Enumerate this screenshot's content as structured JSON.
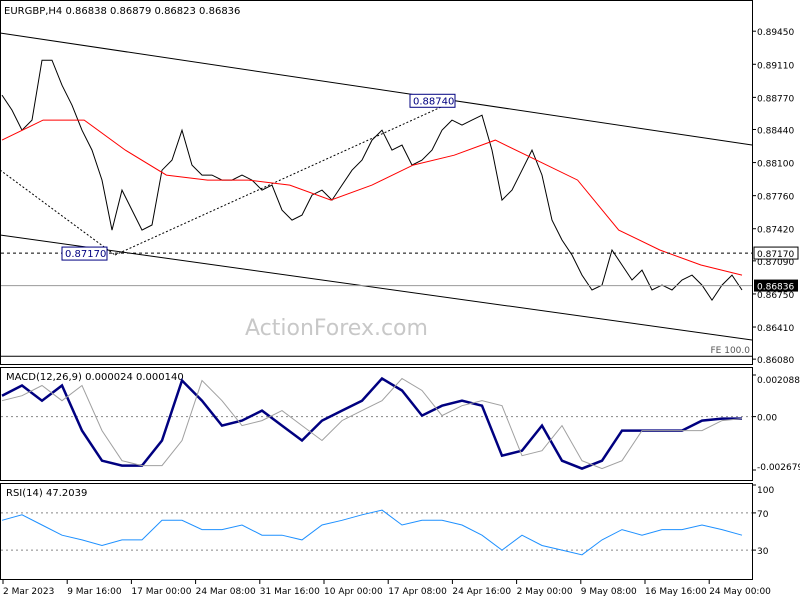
{
  "chart_data": [
    {
      "type": "line",
      "title": "EURGBP,H4  0.86838 0.86879 0.86823 0.86836",
      "watermark": "ActionForex.com",
      "ylim": [
        0.8603,
        0.8975
      ],
      "yticks": [
        {
          "value": 0.8945,
          "label": "0.89450"
        },
        {
          "value": 0.8911,
          "label": "0.89110"
        },
        {
          "value": 0.8877,
          "label": "0.88770"
        },
        {
          "value": 0.8844,
          "label": "0.88440"
        },
        {
          "value": 0.881,
          "label": "0.88100"
        },
        {
          "value": 0.8776,
          "label": "0.87760"
        },
        {
          "value": 0.8742,
          "label": "0.87420"
        },
        {
          "value": 0.8709,
          "label": "0.87090"
        },
        {
          "value": 0.8675,
          "label": "0.86750"
        },
        {
          "value": 0.8641,
          "label": "0.86410"
        },
        {
          "value": 0.8608,
          "label": "0.86080"
        }
      ],
      "series": [
        {
          "name": "EURGBP",
          "color": "#000000",
          "values": [
            0.88793,
            0.88639,
            0.88433,
            0.88536,
            0.89152,
            0.89152,
            0.88895,
            0.8869,
            0.88433,
            0.88228,
            0.8792,
            0.87406,
            0.87817,
            0.87612,
            0.87406,
            0.87458,
            0.88022,
            0.88125,
            0.88433,
            0.88074,
            0.87971,
            0.87971,
            0.8792,
            0.8792,
            0.87971,
            0.8792,
            0.87817,
            0.87868,
            0.87612,
            0.87509,
            0.8756,
            0.87766,
            0.87817,
            0.87714,
            0.87868,
            0.88022,
            0.88125,
            0.88331,
            0.88433,
            0.88228,
            0.88279,
            0.88074,
            0.88125,
            0.88228,
            0.88433,
            0.88536,
            0.88485,
            0.88536,
            0.88587,
            0.88228,
            0.87714,
            0.87817,
            0.88022,
            0.88228,
            0.87971,
            0.87509,
            0.87304,
            0.8715,
            0.86944,
            0.8679,
            0.86841,
            0.87201,
            0.87047,
            0.86893,
            0.86995,
            0.8679,
            0.86841,
            0.8679,
            0.86893,
            0.86944,
            0.86841,
            0.86687,
            0.86841,
            0.86944,
            0.8679
          ]
        },
        {
          "name": "MA",
          "color": "#ff0000",
          "values": [
            0.88331,
            0.88536,
            0.88536,
            0.88228,
            0.87971,
            0.8792,
            0.8792,
            0.87868,
            0.87714,
            0.87868,
            0.88074,
            0.88176,
            0.88331,
            0.88125,
            0.8792,
            0.87406,
            0.87201,
            0.87047,
            0.86944
          ]
        }
      ],
      "levels": [
        {
          "value": 0.8717,
          "label": "0.87170"
        },
        {
          "value": 0.86836,
          "label": "0.86836"
        },
        {
          "value": 0.8611,
          "label": "FE 100.0"
        }
      ],
      "annotations": [
        {
          "value": 0.8874,
          "label": "0.88740"
        },
        {
          "value": 0.8717,
          "label": "0.87170"
        }
      ]
    },
    {
      "type": "line",
      "title": "MACD(12,26,9) 0.000024 0.000140",
      "ylim": [
        -0.002679,
        0.002088
      ],
      "yticks": [
        0.002088,
        {
          "value": 0,
          "label": "0.00"
        },
        -0.002679
      ],
      "series": [
        {
          "name": "MACD",
          "color": "#000080",
          "values": [
            0.00105,
            0.00156,
            0.0008,
            0.00156,
            -0.0007,
            -0.00221,
            -0.00246,
            -0.00246,
            -0.0012,
            0.00181,
            0.0008,
            -0.00045,
            -0.0002,
            0.0003,
            -0.00045,
            -0.0012,
            -0.0002,
            0.0003,
            0.0008,
            0.00191,
            0.00131,
            5e-05,
            0.00055,
            0.0008,
            0.00055,
            -0.00196,
            -0.00171,
            -0.00045,
            -0.00221,
            -0.00261,
            -0.00221,
            -0.0007,
            -0.0007,
            -0.0007,
            -0.0007,
            -0.0002,
            -0.0001,
            -0.0001
          ]
        },
        {
          "name": "Signal",
          "color": "#a0a0a0",
          "values": [
            0.0008,
            0.00105,
            0.00156,
            0.0008,
            0.00156,
            -0.0007,
            -0.00221,
            -0.00246,
            -0.00246,
            -0.0012,
            0.00181,
            0.0008,
            -0.00045,
            -0.0002,
            0.0003,
            -0.00045,
            -0.0012,
            -0.0002,
            0.0003,
            0.0008,
            0.00191,
            0.00131,
            5e-05,
            0.00055,
            0.0008,
            0.00055,
            -0.00196,
            -0.00171,
            -0.00045,
            -0.00221,
            -0.00261,
            -0.00221,
            -0.0007,
            -0.0007,
            -0.0007,
            -0.0007,
            -0.0002,
            -0.0001
          ]
        }
      ]
    },
    {
      "type": "line",
      "title": "RSI(14) 47.2039",
      "ylim": [
        0,
        100
      ],
      "yticks": [
        100,
        70,
        30
      ],
      "series": [
        {
          "name": "RSI",
          "color": "#1e90ff",
          "values": [
            62,
            68,
            57,
            46,
            41,
            35,
            41,
            41,
            62,
            62,
            52,
            52,
            57,
            46,
            46,
            41,
            57,
            62,
            68,
            73,
            57,
            62,
            62,
            57,
            46,
            30,
            46,
            35,
            30,
            25,
            41,
            52,
            46,
            52,
            52,
            57,
            52,
            46
          ]
        }
      ],
      "x_labels": [
        "2 Mar 2023",
        "9 Mar 16:00",
        "17 Mar 00:00",
        "24 Mar 08:00",
        "31 Mar 16:00",
        "10 Apr 00:00",
        "17 Apr 08:00",
        "24 Apr 16:00",
        "2 May 00:00",
        "9 May 08:00",
        "16 May 16:00",
        "24 May 00:00"
      ]
    }
  ]
}
